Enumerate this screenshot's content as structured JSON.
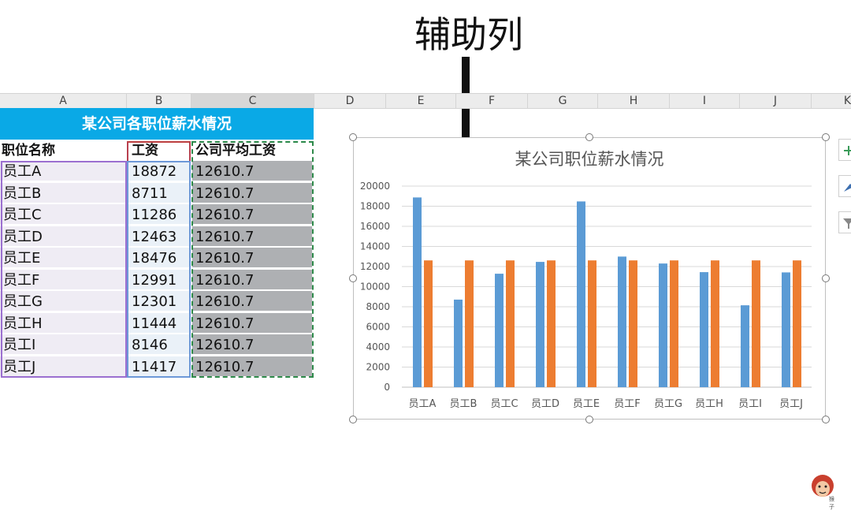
{
  "annotation": {
    "text": "辅助列"
  },
  "column_headers": [
    "A",
    "B",
    "C",
    "D",
    "E",
    "F",
    "G",
    "H",
    "I",
    "J",
    "K"
  ],
  "sheet": {
    "title": "某公司各职位薪水情况",
    "headers": {
      "name": "职位名称",
      "salary": "工资",
      "average": "公司平均工资"
    },
    "rows": [
      {
        "name": "员工A",
        "salary": "18872",
        "average": "12610.7"
      },
      {
        "name": "员工B",
        "salary": "8711",
        "average": "12610.7"
      },
      {
        "name": "员工C",
        "salary": "11286",
        "average": "12610.7"
      },
      {
        "name": "员工D",
        "salary": "12463",
        "average": "12610.7"
      },
      {
        "name": "员工E",
        "salary": "18476",
        "average": "12610.7"
      },
      {
        "name": "员工F",
        "salary": "12991",
        "average": "12610.7"
      },
      {
        "name": "员工G",
        "salary": "12301",
        "average": "12610.7"
      },
      {
        "name": "员工H",
        "salary": "11444",
        "average": "12610.7"
      },
      {
        "name": "员工I",
        "salary": "8146",
        "average": "12610.7"
      },
      {
        "name": "员工J",
        "salary": "11417",
        "average": "12610.7"
      }
    ]
  },
  "colors": {
    "title_bar": "#0aa9e6",
    "salary_series": "#5b9bd5",
    "average_series": "#ed7d31",
    "grid": "#d9d9d9"
  },
  "logo": {
    "text": "猴子"
  },
  "chart_data": {
    "type": "bar",
    "title": "某公司职位薪水情况",
    "categories": [
      "员工A",
      "员工B",
      "员工C",
      "员工D",
      "员工E",
      "员工F",
      "员工G",
      "员工H",
      "员工I",
      "员工J"
    ],
    "series": [
      {
        "values": [
          18872,
          8711,
          11286,
          12463,
          18476,
          12991,
          12301,
          11444,
          8146,
          11417
        ]
      },
      {
        "values": [
          12610.7,
          12610.7,
          12610.7,
          12610.7,
          12610.7,
          12610.7,
          12610.7,
          12610.7,
          12610.7,
          12610.7
        ]
      }
    ],
    "yticks": [
      "0",
      "2000",
      "4000",
      "6000",
      "8000",
      "10000",
      "12000",
      "14000",
      "16000",
      "18000",
      "20000"
    ],
    "ylim": [
      0,
      20000
    ],
    "grid": true,
    "legend": "none"
  }
}
